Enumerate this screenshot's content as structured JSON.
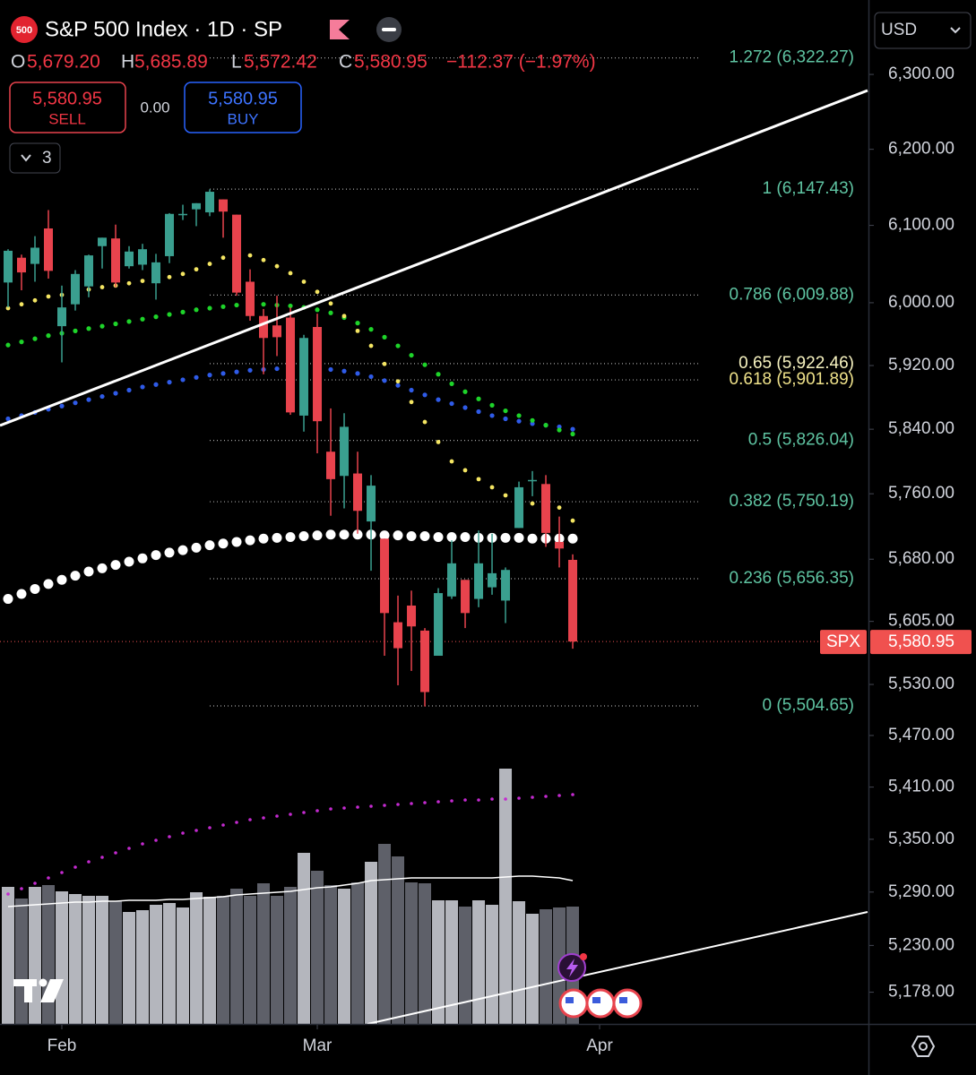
{
  "header": {
    "logo": "500",
    "title": "S&P 500 Index · 1D · SP",
    "ohlc": [
      {
        "key": "O",
        "value": "5,679.20"
      },
      {
        "key": "H",
        "value": "5,685.89"
      },
      {
        "key": "L",
        "value": "5,572.42"
      },
      {
        "key": "C",
        "value": "5,580.95"
      }
    ],
    "change": "−112.37 (−1.97%)",
    "sell": {
      "price": "5,580.95",
      "label": "SELL"
    },
    "spread": "0.00",
    "buy": {
      "price": "5,580.95",
      "label": "BUY"
    },
    "indicators_count": "3",
    "currency": "USD"
  },
  "chart_data": {
    "type": "candlestick",
    "log_scale": true,
    "x": [
      0,
      1,
      2,
      3,
      4,
      5,
      6,
      7,
      8,
      9,
      10,
      11,
      12,
      13,
      14,
      15,
      16,
      17,
      18,
      19,
      20,
      21,
      22,
      23,
      24,
      25,
      26,
      27,
      28,
      29,
      30,
      31,
      32,
      33,
      34,
      35,
      36,
      37,
      38,
      39,
      40,
      41,
      42
    ],
    "xlim": [
      -0.6,
      63.93
    ],
    "xticks": [
      {
        "value": 4,
        "label": "Feb"
      },
      {
        "value": 23,
        "label": "Mar"
      },
      {
        "value": 44,
        "label": "Apr"
      }
    ],
    "ylim": [
      5143,
      6401
    ],
    "yticks": [
      {
        "value": 6300,
        "label": "6,300.00"
      },
      {
        "value": 6200,
        "label": "6,200.00"
      },
      {
        "value": 6100,
        "label": "6,100.00"
      },
      {
        "value": 6000,
        "label": "6,000.00"
      },
      {
        "value": 5920,
        "label": "5,920.00"
      },
      {
        "value": 5840,
        "label": "5,840.00"
      },
      {
        "value": 5760,
        "label": "5,760.00"
      },
      {
        "value": 5680,
        "label": "5,680.00"
      },
      {
        "value": 5605,
        "label": "5,605.00"
      },
      {
        "value": 5530,
        "label": "5,530.00"
      },
      {
        "value": 5470,
        "label": "5,470.00"
      },
      {
        "value": 5410,
        "label": "5,410.00"
      },
      {
        "value": 5350,
        "label": "5,350.00"
      },
      {
        "value": 5290,
        "label": "5,290.00"
      },
      {
        "value": 5230,
        "label": "5,230.00"
      },
      {
        "value": 5178,
        "label": "5,178.00"
      }
    ],
    "up_color": "#3a9f8f",
    "down_color": "#e8434d",
    "open": [
      6026,
      6058,
      6050,
      6096,
      5970,
      5998,
      6021,
      6073,
      6083,
      6047,
      6049,
      6025,
      6060,
      6115,
      6121,
      6117,
      6134,
      6114,
      6027,
      5983,
      5971,
      5981,
      5857,
      5969,
      5812,
      5782,
      5785,
      5726,
      5705,
      5604,
      5624,
      5594,
      5564,
      5635,
      5655,
      5632,
      5646,
      5630,
      5718,
      5776,
      5772,
      5701,
      5679.2
    ],
    "high": [
      6069,
      6062,
      6086,
      6120,
      6022,
      6042,
      6062,
      6084,
      6101,
      6073,
      6076,
      6063,
      6116,
      6127,
      6129,
      6147,
      6134,
      6114,
      6043,
      5992,
      6009,
      5994,
      5959,
      5986,
      5866,
      5860,
      5812,
      5783,
      5705,
      5636,
      5642,
      5597,
      5645,
      5703,
      5655,
      5715,
      5711,
      5670,
      5775,
      5788,
      5783,
      5732,
      5685.89
    ],
    "low": [
      5994,
      6016,
      6027,
      6031,
      5924,
      5990,
      6007,
      6044,
      6020,
      6044,
      6042,
      6004,
      6051,
      6107,
      6099,
      6112,
      6084,
      6009,
      5977,
      5909,
      5932,
      5858,
      5837,
      5810,
      5733,
      5742,
      5711,
      5666,
      5564,
      5529,
      5546,
      5504,
      5564,
      5632,
      5597,
      5622,
      5637,
      5603,
      5718,
      5757,
      5695,
      5670,
      5572.42
    ],
    "close": [
      6067,
      6039,
      6071,
      6041,
      5994,
      6037,
      6061,
      6084,
      6026,
      6066,
      6069,
      6052,
      6115,
      6115,
      6129,
      6144,
      6118,
      6013,
      5983,
      5955,
      5956,
      5861,
      5955,
      5850,
      5778,
      5843,
      5739,
      5770,
      5615,
      5573,
      5599,
      5521,
      5639,
      5675,
      5615,
      5675,
      5663,
      5667,
      5768,
      5777,
      5712,
      5693,
      5580.95
    ],
    "overlays": [
      {
        "color": "#ffffff",
        "size": 5.5,
        "values": [
          5632,
          5638,
          5644,
          5650,
          5655,
          5660,
          5665,
          5669,
          5673,
          5677,
          5681,
          5685,
          5688,
          5691,
          5694,
          5697,
          5699,
          5701,
          5703,
          5705,
          5706,
          5707,
          5708,
          5709,
          5710,
          5710,
          5710,
          5710,
          5709,
          5709,
          5708,
          5708,
          5707,
          5707,
          5707,
          5706,
          5706,
          5706,
          5706,
          5705,
          5705,
          5705,
          5705
        ]
      },
      {
        "color": "#2f5be8",
        "size": 2.6,
        "values": [
          5853,
          5857,
          5861,
          5865,
          5869,
          5873,
          5877,
          5881,
          5885,
          5889,
          5893,
          5896,
          5899,
          5902,
          5905,
          5908,
          5910,
          5912,
          5914,
          5915,
          5916,
          5916,
          5916,
          5916,
          5915,
          5913,
          5910,
          5906,
          5901,
          5895,
          5889,
          5883,
          5877,
          5872,
          5867,
          5862,
          5857,
          5853,
          5850,
          5847,
          5845,
          5843,
          5840
        ]
      },
      {
        "color": "#1ed42a",
        "size": 2.6,
        "values": [
          5946,
          5950,
          5954,
          5958,
          5961,
          5964,
          5967,
          5970,
          5973,
          5976,
          5979,
          5982,
          5985,
          5988,
          5991,
          5993,
          5995,
          5997,
          5998,
          5998,
          5997,
          5996,
          5994,
          5991,
          5987,
          5981,
          5974,
          5966,
          5956,
          5945,
          5933,
          5921,
          5909,
          5897,
          5887,
          5878,
          5870,
          5863,
          5857,
          5851,
          5845,
          5839,
          5834
        ]
      },
      {
        "color": "#f5e663",
        "size": 2.4,
        "values": [
          5993,
          5998,
          6003,
          6008,
          6010,
          6013,
          6017,
          6020,
          6022,
          6025,
          6028,
          6031,
          6033,
          6037,
          6043,
          6050,
          6058,
          6063,
          6061,
          6055,
          6047,
          6038,
          6027,
          6014,
          5999,
          5983,
          5964,
          5945,
          5922,
          5900,
          5874,
          5849,
          5824,
          5800,
          5789,
          5778,
          5768,
          5758,
          5753,
          5748,
          5745,
          5743,
          5727
        ]
      }
    ],
    "volume_ylim": [
      0,
      400
    ],
    "volume_up_color": "#b4b6bd",
    "volume_down_color": "#5e6069",
    "volume": [
      153,
      140,
      153,
      155,
      148,
      145,
      143,
      143,
      137,
      125,
      127,
      133,
      135,
      130,
      147,
      142,
      143,
      151,
      143,
      157,
      143,
      153,
      191,
      171,
      155,
      151,
      158,
      181,
      201,
      187,
      158,
      157,
      138,
      138,
      131,
      138,
      133,
      285,
      137,
      123,
      128,
      130,
      131
    ],
    "volume_ma": {
      "color": "#ffffff",
      "values": [
        131,
        132,
        133,
        134,
        135,
        136,
        136,
        137,
        137,
        138,
        138,
        138,
        139,
        139,
        140,
        141,
        142,
        144,
        145,
        146,
        147,
        148,
        150,
        152,
        153,
        155,
        157,
        160,
        161,
        162,
        163,
        163,
        163,
        163,
        163,
        163,
        163,
        164,
        165,
        165,
        164,
        163,
        160
      ]
    },
    "volume_ma_long": {
      "color": "#c42ad0",
      "values": [
        145,
        151,
        157,
        163,
        169,
        175,
        181,
        186,
        191,
        196,
        201,
        205,
        209,
        213,
        216,
        219,
        222,
        225,
        228,
        230,
        232,
        234,
        236,
        238,
        240,
        241,
        242,
        243,
        244,
        245,
        246,
        247,
        248,
        249,
        250,
        250,
        251,
        251,
        252,
        253,
        254,
        255,
        256
      ]
    },
    "fib_levels": [
      {
        "label": "1.272 (6,322.27)",
        "value": 6322.27,
        "color": "#5fc4a2"
      },
      {
        "label": "1 (6,147.43)",
        "value": 6147.43,
        "color": "#5fc4a2"
      },
      {
        "label": "0.786 (6,009.88)",
        "value": 6009.88,
        "color": "#5fc4a2"
      },
      {
        "label": "0.65 (5,922.46)",
        "value": 5922.46,
        "color": "#f7f3c0"
      },
      {
        "label": "0.618 (5,901.89)",
        "value": 5901.89,
        "color": "#efe28a"
      },
      {
        "label": "0.5 (5,826.04)",
        "value": 5826.04,
        "color": "#5fc4a2"
      },
      {
        "label": "0.382 (5,750.19)",
        "value": 5750.19,
        "color": "#5fc4a2"
      },
      {
        "label": "0.236 (5,656.35)",
        "value": 5656.35,
        "color": "#5fc4a2"
      },
      {
        "label": "0 (5,504.65)",
        "value": 5504.65,
        "color": "#5fc4a2"
      }
    ],
    "last_price": {
      "name": "SPX",
      "value": 5580.95,
      "label": "5,580.95",
      "color": "#f0514f"
    }
  }
}
